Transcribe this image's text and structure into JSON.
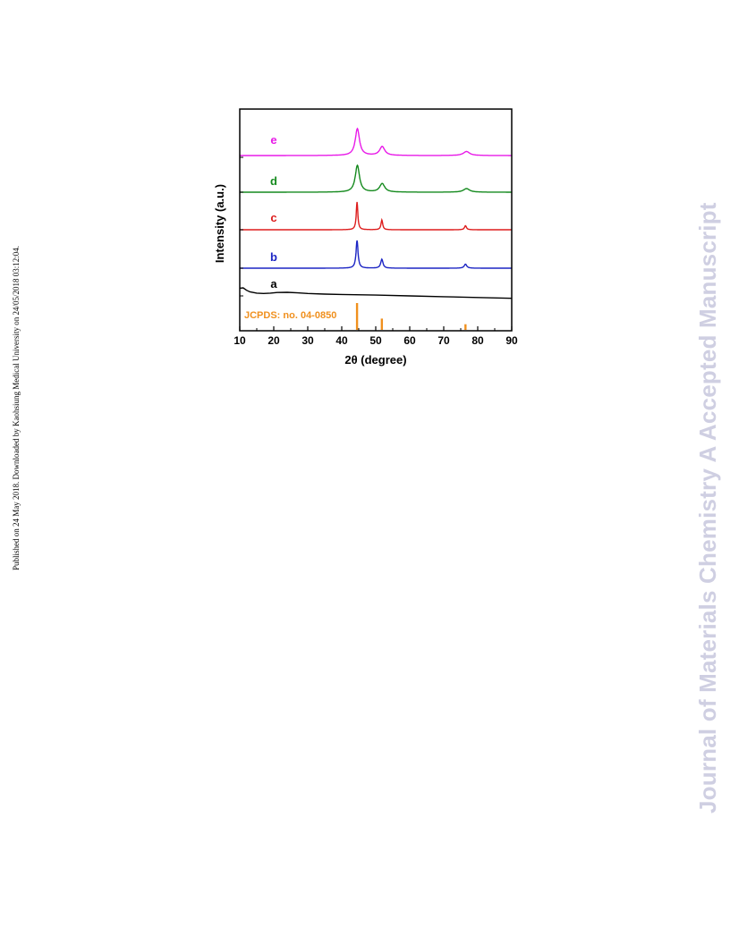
{
  "side_note": "Published on 24 May 2018. Downloaded by Kaohsiung Medical University on 24/05/2018 03:12:04.",
  "watermark": "Journal of Materials Chemistry A Accepted Manuscript",
  "chart_data": {
    "type": "line",
    "title": "",
    "xlabel": "2θ (degree)",
    "ylabel": "Intensity (a.u.)",
    "xlim": [
      10,
      90
    ],
    "xticks": [
      10,
      20,
      30,
      40,
      50,
      60,
      70,
      80,
      90
    ],
    "yticks_shown": false,
    "grid": false,
    "legend": "inline labels",
    "reference": {
      "name": "JCPDS: no. 04-0850",
      "color": "#f0901e",
      "peaks": [
        {
          "x": 44.5,
          "intensity": 100
        },
        {
          "x": 51.8,
          "intensity": 42
        },
        {
          "x": 76.4,
          "intensity": 21
        }
      ]
    },
    "series": [
      {
        "name": "a",
        "color": "#000000",
        "profile": "amorphous",
        "points": [
          [
            10,
            0.95
          ],
          [
            11,
            1.0
          ],
          [
            12,
            0.7
          ],
          [
            13,
            0.5
          ],
          [
            15,
            0.35
          ],
          [
            17,
            0.3
          ],
          [
            19,
            0.35
          ],
          [
            21,
            0.42
          ],
          [
            24,
            0.44
          ],
          [
            27,
            0.38
          ],
          [
            30,
            0.3
          ],
          [
            35,
            0.22
          ],
          [
            40,
            0.18
          ],
          [
            50,
            0.1
          ],
          [
            60,
            0.0
          ],
          [
            70,
            -0.1
          ],
          [
            80,
            -0.2
          ],
          [
            90,
            -0.3
          ]
        ]
      },
      {
        "name": "b",
        "color": "#1c25c4",
        "peaks": [
          {
            "x": 44.5,
            "height": 3.1,
            "width": 0.35
          },
          {
            "x": 51.8,
            "height": 1.0,
            "width": 0.4
          },
          {
            "x": 76.4,
            "height": 0.45,
            "width": 0.45
          }
        ]
      },
      {
        "name": "c",
        "color": "#dd1c1c",
        "peaks": [
          {
            "x": 44.5,
            "height": 3.1,
            "width": 0.28
          },
          {
            "x": 51.8,
            "height": 1.1,
            "width": 0.3
          },
          {
            "x": 76.4,
            "height": 0.45,
            "width": 0.35
          }
        ]
      },
      {
        "name": "d",
        "color": "#158a1e",
        "peaks": [
          {
            "x": 44.6,
            "height": 3.0,
            "width": 0.75
          },
          {
            "x": 51.9,
            "height": 0.95,
            "width": 0.9
          },
          {
            "x": 76.7,
            "height": 0.4,
            "width": 1.1
          }
        ]
      },
      {
        "name": "e",
        "color": "#e81be8",
        "peaks": [
          {
            "x": 44.6,
            "height": 3.0,
            "width": 0.75
          },
          {
            "x": 51.9,
            "height": 1.0,
            "width": 0.9
          },
          {
            "x": 76.7,
            "height": 0.45,
            "width": 1.1
          }
        ]
      }
    ]
  }
}
